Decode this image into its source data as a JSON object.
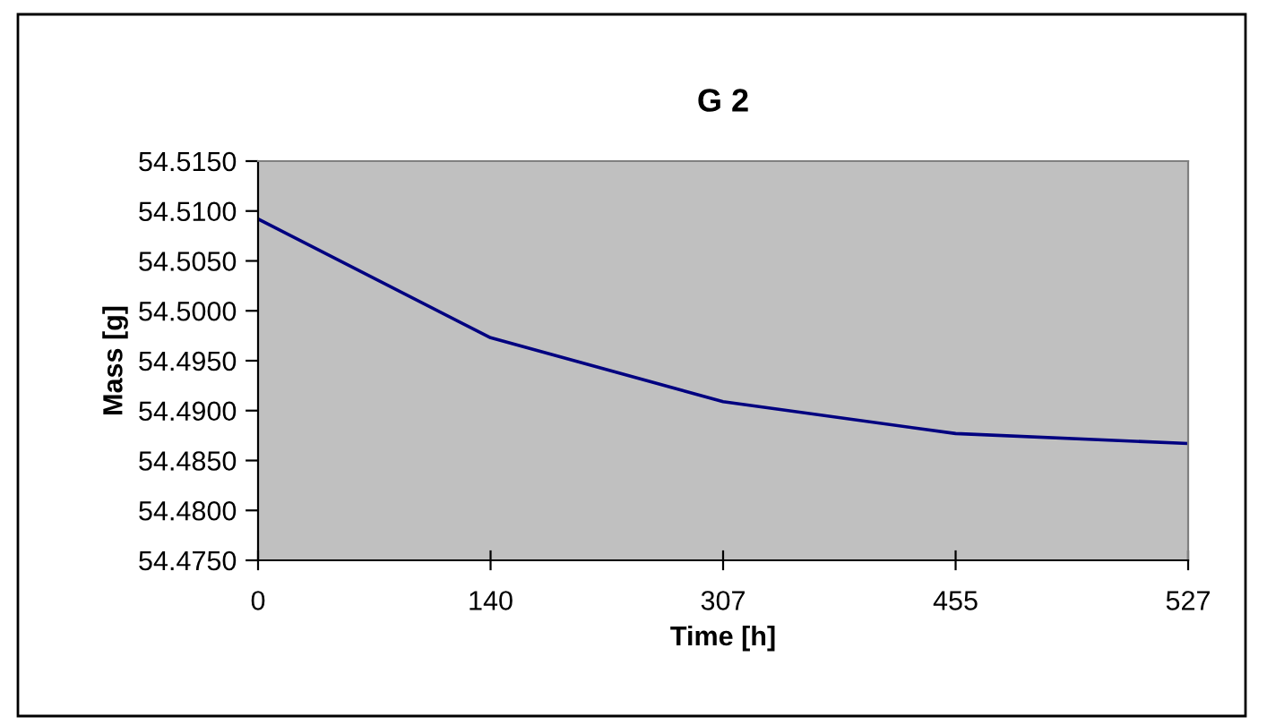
{
  "chart_data": {
    "type": "line",
    "title": "G 2",
    "xlabel": "Time [h]",
    "ylabel": "Mass [g]",
    "categories": [
      "0",
      "140",
      "307",
      "455",
      "527"
    ],
    "series": [
      {
        "color": "#000080",
        "values": [
          54.5092,
          54.4973,
          54.4909,
          54.4877,
          54.4867
        ]
      }
    ],
    "ylim": [
      54.475,
      54.515
    ],
    "yticks": [
      {
        "value": 54.475,
        "label": "54.4750"
      },
      {
        "value": 54.48,
        "label": "54.4800"
      },
      {
        "value": 54.485,
        "label": "54.4850"
      },
      {
        "value": 54.49,
        "label": "54.4900"
      },
      {
        "value": 54.495,
        "label": "54.4950"
      },
      {
        "value": 54.5,
        "label": "54.5000"
      },
      {
        "value": 54.505,
        "label": "54.5050"
      },
      {
        "value": 54.51,
        "label": "54.5100"
      },
      {
        "value": 54.515,
        "label": "54.5150"
      }
    ],
    "grid": false,
    "legend": false,
    "marker": "none",
    "line_style": "solid"
  }
}
